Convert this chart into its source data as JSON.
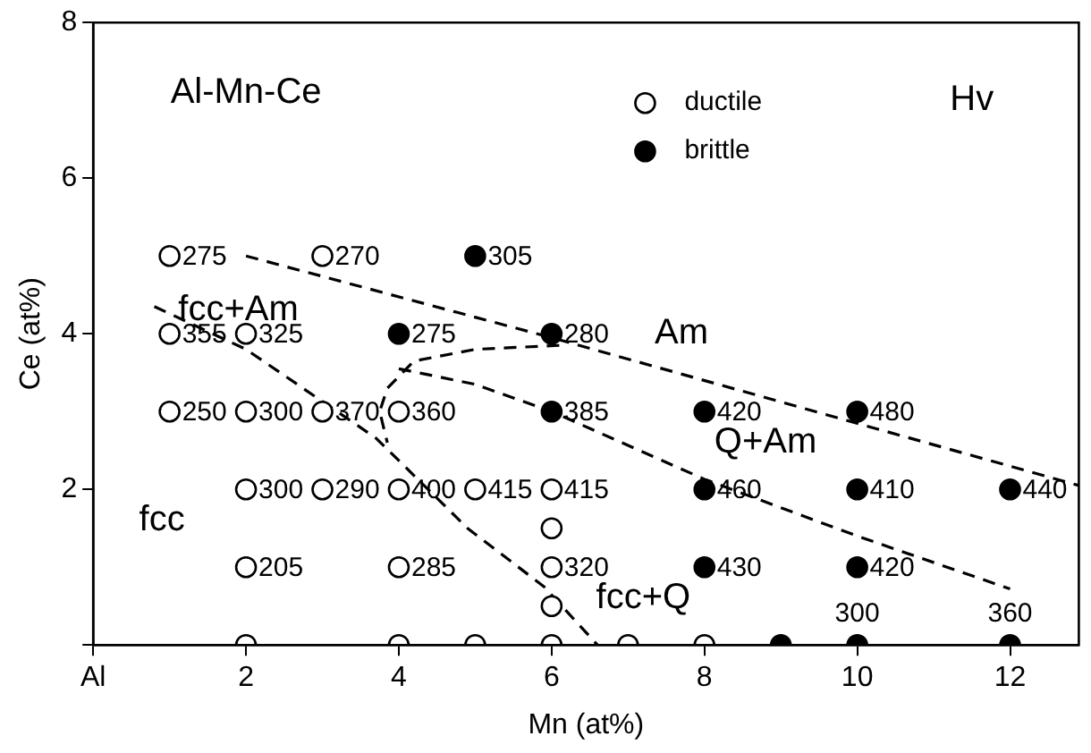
{
  "chart_data": {
    "type": "scatter",
    "xlabel": "Mn (at%)",
    "ylabel": "Ce (at%)",
    "xlim": [
      0,
      12.9
    ],
    "ylim": [
      0,
      8
    ],
    "xticks": [
      {
        "value": 0,
        "label": "Al"
      },
      2,
      4,
      6,
      8,
      10,
      12
    ],
    "yticks": [
      {
        "value": 0,
        "label": null
      },
      2,
      4,
      6,
      8
    ],
    "grid": false,
    "legend": "top",
    "marker": "circle",
    "annotations": [
      "Al-Mn-Ce",
      "Hv",
      "fcc+Am",
      "Am",
      "Q+Am",
      "fcc",
      "fcc+Q",
      {
        "text": "275",
        "x": 1,
        "y": 5
      },
      {
        "text": "270",
        "x": 3,
        "y": 5
      },
      {
        "text": "355",
        "x": 1,
        "y": 4
      },
      {
        "text": "325",
        "x": 2,
        "y": 4
      },
      {
        "text": "360",
        "x": 4,
        "y": 3
      },
      {
        "text": "250",
        "x": 1,
        "y": 3
      },
      {
        "text": "300",
        "x": 2,
        "y": 3
      },
      {
        "text": "370",
        "x": 3,
        "y": 3
      },
      {
        "text": "300",
        "x": 2,
        "y": 2
      },
      {
        "text": "290",
        "x": 3,
        "y": 2
      },
      {
        "text": "400",
        "x": 4,
        "y": 2
      },
      {
        "text": "415",
        "x": 5,
        "y": 2
      },
      {
        "text": "415",
        "x": 6,
        "y": 2
      },
      {
        "text": "320",
        "x": 6,
        "y": 1
      },
      {
        "text": "205",
        "x": 2,
        "y": 1
      },
      {
        "text": "285",
        "x": 4,
        "y": 1
      },
      {
        "text": "305",
        "x": 5,
        "y": 5
      },
      {
        "text": "275",
        "x": 4,
        "y": 4
      },
      {
        "text": "280",
        "x": 6,
        "y": 4
      },
      {
        "text": "385",
        "x": 6,
        "y": 3
      },
      {
        "text": "420",
        "x": 8,
        "y": 3
      },
      {
        "text": "480",
        "x": 10,
        "y": 3
      },
      {
        "text": "460",
        "x": 8,
        "y": 2
      },
      {
        "text": "410",
        "x": 10,
        "y": 2
      },
      {
        "text": "440",
        "x": 12,
        "y": 2
      },
      {
        "text": "430",
        "x": 8,
        "y": 1
      },
      {
        "text": "420",
        "x": 10,
        "y": 1
      },
      {
        "text": "300",
        "x": 10,
        "y": 0
      },
      {
        "text": "360",
        "x": 12,
        "y": 0
      }
    ],
    "series": [
      {
        "name": "ductile",
        "color": "#ffffff",
        "x": [
          1,
          3,
          1,
          2,
          4,
          1,
          2,
          3,
          2,
          3,
          4,
          5,
          6,
          6,
          6,
          6,
          2,
          4,
          2,
          4,
          5,
          6,
          7,
          8
        ],
        "values": [
          5,
          5,
          4,
          4,
          3,
          3,
          3,
          3,
          2,
          2,
          2,
          2,
          2,
          1.5,
          1,
          0.5,
          1,
          1,
          0,
          0,
          0,
          0,
          0,
          0
        ]
      },
      {
        "name": "brittle",
        "color": "#000000",
        "x": [
          5,
          4,
          6,
          6,
          8,
          10,
          8,
          10,
          12,
          8,
          10,
          9,
          10,
          12
        ],
        "values": [
          5,
          4,
          4,
          3,
          3,
          3,
          2,
          2,
          2,
          1,
          1,
          0,
          0,
          0
        ]
      },
      {
        "type": "line",
        "color": "#000000",
        "line_style": "dashed",
        "marker": "none",
        "x": [
          2,
          6,
          12.9
        ],
        "values": [
          5.0,
          3.95,
          2.05
        ]
      },
      {
        "type": "line",
        "color": "#000000",
        "line_style": "dashed",
        "marker": "none",
        "x": [
          0.8,
          2,
          3.7,
          4.9,
          5.9,
          6.6
        ],
        "values": [
          4.35,
          3.8,
          2.66,
          1.5,
          0.75,
          0
        ]
      },
      {
        "type": "line",
        "color": "#000000",
        "line_style": "dashed",
        "marker": "none",
        "x": [
          6.1,
          5,
          4.2,
          3.85,
          3.75,
          3.85
        ],
        "values": [
          3.85,
          3.8,
          3.65,
          3.3,
          3.0,
          2.6
        ]
      },
      {
        "type": "line",
        "color": "#000000",
        "line_style": "dashed",
        "marker": "none",
        "x": [
          4,
          5,
          6,
          8,
          10,
          12
        ],
        "values": [
          3.55,
          3.35,
          3.0,
          2.13,
          1.4,
          0.72
        ]
      }
    ]
  }
}
